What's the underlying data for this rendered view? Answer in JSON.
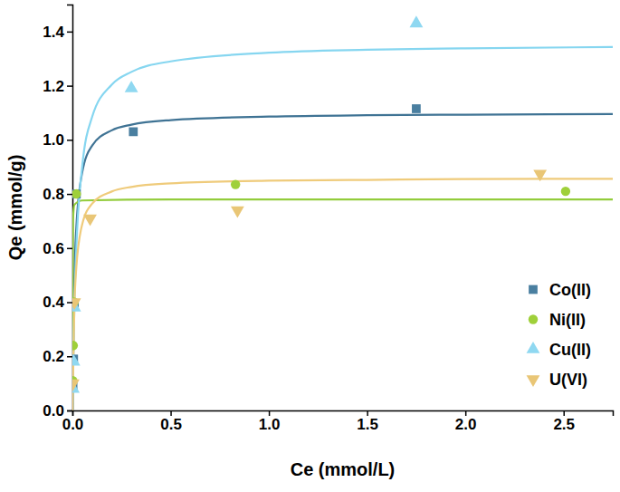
{
  "chart_data": {
    "type": "scatter",
    "x_label": "Ce (mmol/L)",
    "y_label": "Qe (mmol/g)",
    "xlim": [
      0,
      2.75
    ],
    "ylim": [
      0,
      1.5
    ],
    "xticks": [
      {
        "value": 0,
        "label": "0.0"
      },
      {
        "value": 0.5,
        "label": "0.5"
      },
      {
        "value": 1,
        "label": "1.0"
      },
      {
        "value": 1.5,
        "label": "1.5"
      },
      {
        "value": 2,
        "label": "2.0"
      },
      {
        "value": 2.5,
        "label": "2.5"
      }
    ],
    "yticks": [
      {
        "value": 0,
        "label": "0.0"
      },
      {
        "value": 0.2,
        "label": "0.2"
      },
      {
        "value": 0.4,
        "label": "0.4"
      },
      {
        "value": 0.6,
        "label": "0.6"
      },
      {
        "value": 0.8,
        "label": "0.8"
      },
      {
        "value": 1,
        "label": "1.0"
      },
      {
        "value": 1.2,
        "label": "1.2"
      },
      {
        "value": 1.4,
        "label": "1.4"
      }
    ],
    "legend": "bottom-right",
    "series": [
      {
        "type": "line",
        "color": "#3f7394",
        "line_style": "solid",
        "x": [
          0,
          0.01,
          0.02,
          0.05,
          0.1,
          0.2,
          0.3,
          0.5,
          1,
          1.5,
          2,
          2.75
        ],
        "values": [
          0,
          0.489,
          0.677,
          0.88,
          0.978,
          1.035,
          1.056,
          1.073,
          1.086,
          1.091,
          1.093,
          1.095
        ]
      },
      {
        "type": "line",
        "color": "#93cc3c",
        "line_style": "solid",
        "x": [
          0,
          0.001,
          0.003,
          0.01,
          0.05,
          0.5,
          1,
          2,
          2.75
        ],
        "values": [
          0,
          0.5,
          0.7,
          0.76,
          0.776,
          0.78,
          0.78,
          0.78,
          0.78
        ]
      },
      {
        "type": "line",
        "color": "#86d6f0",
        "line_style": "solid",
        "x": [
          0,
          0.01,
          0.02,
          0.05,
          0.1,
          0.2,
          0.3,
          0.5,
          1,
          1.5,
          2,
          2.75
        ],
        "values": [
          0,
          0.387,
          0.602,
          0.903,
          1.084,
          1.204,
          1.251,
          1.29,
          1.322,
          1.333,
          1.338,
          1.343
        ]
      },
      {
        "type": "line",
        "color": "#efcb7b",
        "line_style": "solid",
        "x": [
          0,
          0.01,
          0.02,
          0.05,
          0.1,
          0.2,
          0.3,
          0.5,
          1,
          1.5,
          2,
          2.75
        ],
        "values": [
          0,
          0.382,
          0.529,
          0.688,
          0.764,
          0.809,
          0.826,
          0.839,
          0.849,
          0.852,
          0.855,
          0.856
        ]
      },
      {
        "name": "Co(II)",
        "type": "scatter",
        "color": "#4a7fa0",
        "marker": "square",
        "x": [
          0.003,
          0.006,
          0.01,
          0.02,
          0.31,
          1.75
        ],
        "values": [
          0.09,
          0.19,
          0.39,
          0.8,
          1.03,
          1.115
        ]
      },
      {
        "name": "Ni(II)",
        "type": "scatter",
        "color": "#9fd03a",
        "marker": "circle",
        "x": [
          0.002,
          0.004,
          0.008,
          0.02,
          0.83,
          2.51
        ],
        "values": [
          0.11,
          0.24,
          0.4,
          0.8,
          0.835,
          0.81
        ]
      },
      {
        "name": "Cu(II)",
        "type": "scatter",
        "color": "#8fd8f1",
        "marker": "triangle",
        "x": [
          0.003,
          0.006,
          0.01,
          0.3,
          1.75
        ],
        "values": [
          0.08,
          0.18,
          0.38,
          1.19,
          1.43
        ]
      },
      {
        "name": "U(VI)",
        "type": "scatter",
        "color": "#e9c676",
        "marker": "triangle-down",
        "x": [
          0.002,
          0.01,
          0.09,
          0.84,
          2.38
        ],
        "values": [
          0.1,
          0.4,
          0.71,
          0.74,
          0.875
        ]
      }
    ]
  }
}
